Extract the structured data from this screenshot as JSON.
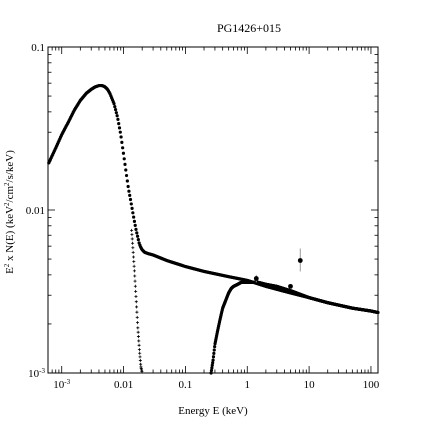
{
  "chart_data": {
    "type": "line",
    "title": "PG1426+015",
    "xlabel": "Energy E (keV)",
    "ylabel_parts": {
      "a": "E",
      "a_sup": "2",
      "b": " x N(E) (keV",
      "b_sup": "2",
      "c": "/cm",
      "c_sup": "2",
      "d": "/s/keV)"
    },
    "xscale": "log",
    "yscale": "log",
    "xlim": [
      0.0006,
      130
    ],
    "ylim": [
      0.001,
      0.1
    ],
    "x_ticks": [
      {
        "value": 0.001,
        "label": "10",
        "sup": "-3"
      },
      {
        "value": 0.01,
        "label": "0.01",
        "sup": ""
      },
      {
        "value": 0.1,
        "label": "0.1",
        "sup": ""
      },
      {
        "value": 1,
        "label": "1",
        "sup": ""
      },
      {
        "value": 10,
        "label": "10",
        "sup": ""
      },
      {
        "value": 100,
        "label": "100",
        "sup": ""
      }
    ],
    "y_ticks": [
      {
        "value": 0.001,
        "label": "10",
        "sup": "-3"
      },
      {
        "value": 0.01,
        "label": "0.01",
        "sup": ""
      },
      {
        "value": 0.1,
        "label": "0.1",
        "sup": ""
      }
    ],
    "series": [
      {
        "role": "total model",
        "style": "dense-dots",
        "x": [
          0.0006,
          0.0008,
          0.001,
          0.0013,
          0.0016,
          0.002,
          0.0025,
          0.003,
          0.0035,
          0.004,
          0.0045,
          0.005,
          0.0055,
          0.006,
          0.007,
          0.008,
          0.009,
          0.01,
          0.011,
          0.012,
          0.013,
          0.014,
          0.015,
          0.016,
          0.017,
          0.018,
          0.019,
          0.02,
          0.022,
          0.025,
          0.03,
          0.05,
          0.1,
          0.2,
          0.5,
          1,
          2,
          5,
          10,
          20,
          50,
          100,
          130
        ],
        "y": [
          0.019,
          0.024,
          0.029,
          0.035,
          0.041,
          0.047,
          0.052,
          0.055,
          0.057,
          0.058,
          0.058,
          0.057,
          0.055,
          0.052,
          0.045,
          0.037,
          0.029,
          0.022,
          0.017,
          0.0135,
          0.0115,
          0.0098,
          0.0085,
          0.0075,
          0.0068,
          0.0062,
          0.0059,
          0.0057,
          0.0055,
          0.0054,
          0.0053,
          0.0049,
          0.0045,
          0.0042,
          0.0039,
          0.0037,
          0.0034,
          0.0031,
          0.0029,
          0.0027,
          0.0025,
          0.0024,
          0.00235
        ]
      },
      {
        "role": "soft component",
        "style": "sparse-plus",
        "x": [
          0.0135,
          0.014,
          0.015,
          0.016,
          0.017,
          0.018,
          0.019,
          0.02
        ],
        "y": [
          0.0075,
          0.0062,
          0.0042,
          0.0028,
          0.0019,
          0.0014,
          0.0011,
          0.001
        ]
      },
      {
        "role": "hard component",
        "style": "dense-dots",
        "x": [
          0.26,
          0.28,
          0.3,
          0.33,
          0.36,
          0.4,
          0.45,
          0.5,
          0.55,
          0.6,
          0.7,
          0.8,
          1,
          1.2,
          1.5,
          2,
          3,
          5,
          10,
          20,
          50,
          100,
          130
        ],
        "y": [
          0.001,
          0.0012,
          0.0015,
          0.0018,
          0.0021,
          0.0025,
          0.0028,
          0.0031,
          0.0033,
          0.0034,
          0.0035,
          0.0036,
          0.0036,
          0.0036,
          0.0036,
          0.0035,
          0.0034,
          0.0032,
          0.0029,
          0.0027,
          0.0025,
          0.0024,
          0.00235
        ]
      }
    ],
    "data_points": {
      "x": [
        1.4,
        5,
        7.2
      ],
      "y": [
        0.0038,
        0.0034,
        0.0049
      ],
      "yerr_low": [
        0.0036,
        0.0033,
        0.0042
      ],
      "yerr_high": [
        0.004,
        0.0035,
        0.0058
      ]
    },
    "grid": false,
    "legend": "none"
  }
}
